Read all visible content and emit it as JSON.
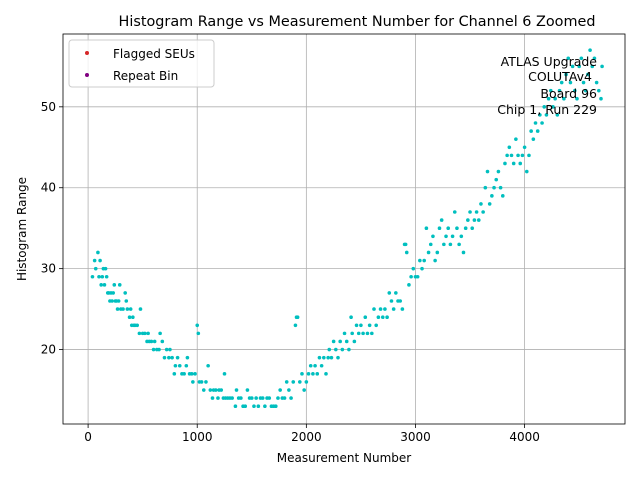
{
  "chart_data": {
    "type": "scatter",
    "title": "Histogram Range vs Measurement Number for Channel 6 Zoomed",
    "xlabel": "Measurement Number",
    "ylabel": "Histogram Range",
    "xlim": [
      -230,
      4920
    ],
    "ylim": [
      10.8,
      59
    ],
    "xticks": [
      0,
      1000,
      2000,
      3000,
      4000
    ],
    "yticks": [
      20,
      30,
      40,
      50
    ],
    "grid": true,
    "legend": {
      "placement": "top-left",
      "entries": [
        {
          "label": "Flagged SEUs",
          "color": "#d62728"
        },
        {
          "label": "Repeat Bin",
          "color": "#800080"
        }
      ]
    },
    "annotation": {
      "placement": "top-right",
      "lines": [
        "ATLAS Upgrade",
        "COLUTAv4",
        "Board 96",
        "Chip 1, Run 229"
      ]
    },
    "series": [
      {
        "color": "#00bfbf",
        "points": [
          [
            40,
            29
          ],
          [
            60,
            31
          ],
          [
            70,
            30
          ],
          [
            90,
            32
          ],
          [
            100,
            29
          ],
          [
            110,
            31
          ],
          [
            120,
            28
          ],
          [
            130,
            29
          ],
          [
            140,
            30
          ],
          [
            150,
            28
          ],
          [
            160,
            30
          ],
          [
            170,
            29
          ],
          [
            180,
            27
          ],
          [
            190,
            27
          ],
          [
            200,
            26
          ],
          [
            210,
            27
          ],
          [
            220,
            26
          ],
          [
            230,
            27
          ],
          [
            240,
            28
          ],
          [
            250,
            26
          ],
          [
            260,
            26
          ],
          [
            270,
            25
          ],
          [
            280,
            26
          ],
          [
            290,
            28
          ],
          [
            300,
            25
          ],
          [
            320,
            25
          ],
          [
            340,
            27
          ],
          [
            350,
            26
          ],
          [
            360,
            25
          ],
          [
            380,
            24
          ],
          [
            390,
            25
          ],
          [
            400,
            23
          ],
          [
            410,
            24
          ],
          [
            420,
            23
          ],
          [
            430,
            23
          ],
          [
            450,
            23
          ],
          [
            470,
            22
          ],
          [
            480,
            25
          ],
          [
            500,
            22
          ],
          [
            520,
            22
          ],
          [
            540,
            21
          ],
          [
            550,
            22
          ],
          [
            560,
            21
          ],
          [
            580,
            21
          ],
          [
            600,
            20
          ],
          [
            610,
            21
          ],
          [
            630,
            20
          ],
          [
            650,
            20
          ],
          [
            660,
            22
          ],
          [
            680,
            21
          ],
          [
            700,
            19
          ],
          [
            720,
            20
          ],
          [
            740,
            19
          ],
          [
            750,
            20
          ],
          [
            770,
            19
          ],
          [
            790,
            17
          ],
          [
            800,
            18
          ],
          [
            820,
            19
          ],
          [
            840,
            18
          ],
          [
            860,
            17
          ],
          [
            880,
            17
          ],
          [
            900,
            18
          ],
          [
            910,
            19
          ],
          [
            930,
            17
          ],
          [
            950,
            17
          ],
          [
            960,
            16
          ],
          [
            980,
            17
          ],
          [
            1000,
            23
          ],
          [
            1010,
            22
          ],
          [
            1020,
            16
          ],
          [
            1040,
            16
          ],
          [
            1060,
            15
          ],
          [
            1080,
            16
          ],
          [
            1100,
            18
          ],
          [
            1120,
            15
          ],
          [
            1140,
            14
          ],
          [
            1150,
            15
          ],
          [
            1170,
            15
          ],
          [
            1190,
            14
          ],
          [
            1200,
            15
          ],
          [
            1220,
            15
          ],
          [
            1240,
            14
          ],
          [
            1250,
            17
          ],
          [
            1260,
            14
          ],
          [
            1280,
            14
          ],
          [
            1300,
            14
          ],
          [
            1320,
            14
          ],
          [
            1350,
            13
          ],
          [
            1360,
            15
          ],
          [
            1380,
            14
          ],
          [
            1400,
            14
          ],
          [
            1420,
            13
          ],
          [
            1440,
            13
          ],
          [
            1460,
            15
          ],
          [
            1480,
            14
          ],
          [
            1500,
            14
          ],
          [
            1520,
            13
          ],
          [
            1540,
            14
          ],
          [
            1560,
            13
          ],
          [
            1580,
            14
          ],
          [
            1600,
            14
          ],
          [
            1620,
            13
          ],
          [
            1640,
            14
          ],
          [
            1660,
            14
          ],
          [
            1680,
            13
          ],
          [
            1700,
            13
          ],
          [
            1720,
            13
          ],
          [
            1740,
            14
          ],
          [
            1760,
            15
          ],
          [
            1780,
            14
          ],
          [
            1800,
            14
          ],
          [
            1820,
            16
          ],
          [
            1840,
            15
          ],
          [
            1860,
            14
          ],
          [
            1880,
            16
          ],
          [
            1900,
            23
          ],
          [
            1910,
            24
          ],
          [
            1920,
            24
          ],
          [
            1940,
            16
          ],
          [
            1960,
            17
          ],
          [
            1980,
            15
          ],
          [
            2000,
            16
          ],
          [
            2020,
            17
          ],
          [
            2040,
            18
          ],
          [
            2060,
            17
          ],
          [
            2080,
            18
          ],
          [
            2100,
            17
          ],
          [
            2120,
            19
          ],
          [
            2140,
            18
          ],
          [
            2160,
            19
          ],
          [
            2180,
            17
          ],
          [
            2200,
            19
          ],
          [
            2210,
            20
          ],
          [
            2230,
            19
          ],
          [
            2250,
            21
          ],
          [
            2270,
            20
          ],
          [
            2290,
            19
          ],
          [
            2310,
            21
          ],
          [
            2330,
            20
          ],
          [
            2350,
            22
          ],
          [
            2370,
            21
          ],
          [
            2390,
            20
          ],
          [
            2410,
            24
          ],
          [
            2420,
            22
          ],
          [
            2440,
            21
          ],
          [
            2460,
            23
          ],
          [
            2480,
            22
          ],
          [
            2500,
            23
          ],
          [
            2520,
            22
          ],
          [
            2540,
            24
          ],
          [
            2560,
            22
          ],
          [
            2580,
            23
          ],
          [
            2600,
            22
          ],
          [
            2620,
            25
          ],
          [
            2640,
            23
          ],
          [
            2660,
            24
          ],
          [
            2680,
            25
          ],
          [
            2700,
            24
          ],
          [
            2720,
            25
          ],
          [
            2740,
            24
          ],
          [
            2760,
            27
          ],
          [
            2780,
            26
          ],
          [
            2800,
            25
          ],
          [
            2820,
            27
          ],
          [
            2840,
            26
          ],
          [
            2860,
            26
          ],
          [
            2880,
            25
          ],
          [
            2900,
            33
          ],
          [
            2910,
            33
          ],
          [
            2920,
            32
          ],
          [
            2940,
            28
          ],
          [
            2960,
            29
          ],
          [
            2980,
            30
          ],
          [
            3000,
            29
          ],
          [
            3020,
            29
          ],
          [
            3040,
            31
          ],
          [
            3060,
            30
          ],
          [
            3080,
            31
          ],
          [
            3100,
            35
          ],
          [
            3120,
            32
          ],
          [
            3140,
            33
          ],
          [
            3160,
            34
          ],
          [
            3180,
            31
          ],
          [
            3200,
            32
          ],
          [
            3220,
            35
          ],
          [
            3240,
            36
          ],
          [
            3260,
            33
          ],
          [
            3280,
            34
          ],
          [
            3300,
            35
          ],
          [
            3320,
            33
          ],
          [
            3340,
            34
          ],
          [
            3360,
            37
          ],
          [
            3380,
            35
          ],
          [
            3400,
            33
          ],
          [
            3420,
            34
          ],
          [
            3440,
            32
          ],
          [
            3460,
            35
          ],
          [
            3480,
            36
          ],
          [
            3500,
            37
          ],
          [
            3520,
            35
          ],
          [
            3540,
            36
          ],
          [
            3560,
            37
          ],
          [
            3580,
            36
          ],
          [
            3600,
            38
          ],
          [
            3620,
            37
          ],
          [
            3640,
            40
          ],
          [
            3660,
            42
          ],
          [
            3680,
            38
          ],
          [
            3700,
            39
          ],
          [
            3720,
            40
          ],
          [
            3740,
            41
          ],
          [
            3760,
            42
          ],
          [
            3780,
            40
          ],
          [
            3800,
            39
          ],
          [
            3820,
            43
          ],
          [
            3840,
            44
          ],
          [
            3860,
            45
          ],
          [
            3880,
            44
          ],
          [
            3900,
            43
          ],
          [
            3920,
            46
          ],
          [
            3940,
            44
          ],
          [
            3960,
            43
          ],
          [
            3980,
            44
          ],
          [
            4000,
            45
          ],
          [
            4020,
            42
          ],
          [
            4040,
            44
          ],
          [
            4060,
            47
          ],
          [
            4080,
            46
          ],
          [
            4100,
            48
          ],
          [
            4120,
            47
          ],
          [
            4140,
            49
          ],
          [
            4160,
            48
          ],
          [
            4180,
            50
          ],
          [
            4200,
            49
          ],
          [
            4220,
            51
          ],
          [
            4240,
            52
          ],
          [
            4260,
            50
          ],
          [
            4280,
            51
          ],
          [
            4300,
            49
          ],
          [
            4320,
            52
          ],
          [
            4340,
            53
          ],
          [
            4360,
            51
          ],
          [
            4380,
            54
          ],
          [
            4400,
            56
          ],
          [
            4420,
            53
          ],
          [
            4440,
            55
          ],
          [
            4460,
            52
          ],
          [
            4480,
            51
          ],
          [
            4500,
            55
          ],
          [
            4520,
            56
          ],
          [
            4540,
            53
          ],
          [
            4560,
            52
          ],
          [
            4580,
            54
          ],
          [
            4600,
            57
          ],
          [
            4620,
            55
          ],
          [
            4640,
            56
          ],
          [
            4660,
            53
          ],
          [
            4680,
            52
          ],
          [
            4700,
            51
          ],
          [
            4710,
            55
          ]
        ]
      }
    ]
  }
}
